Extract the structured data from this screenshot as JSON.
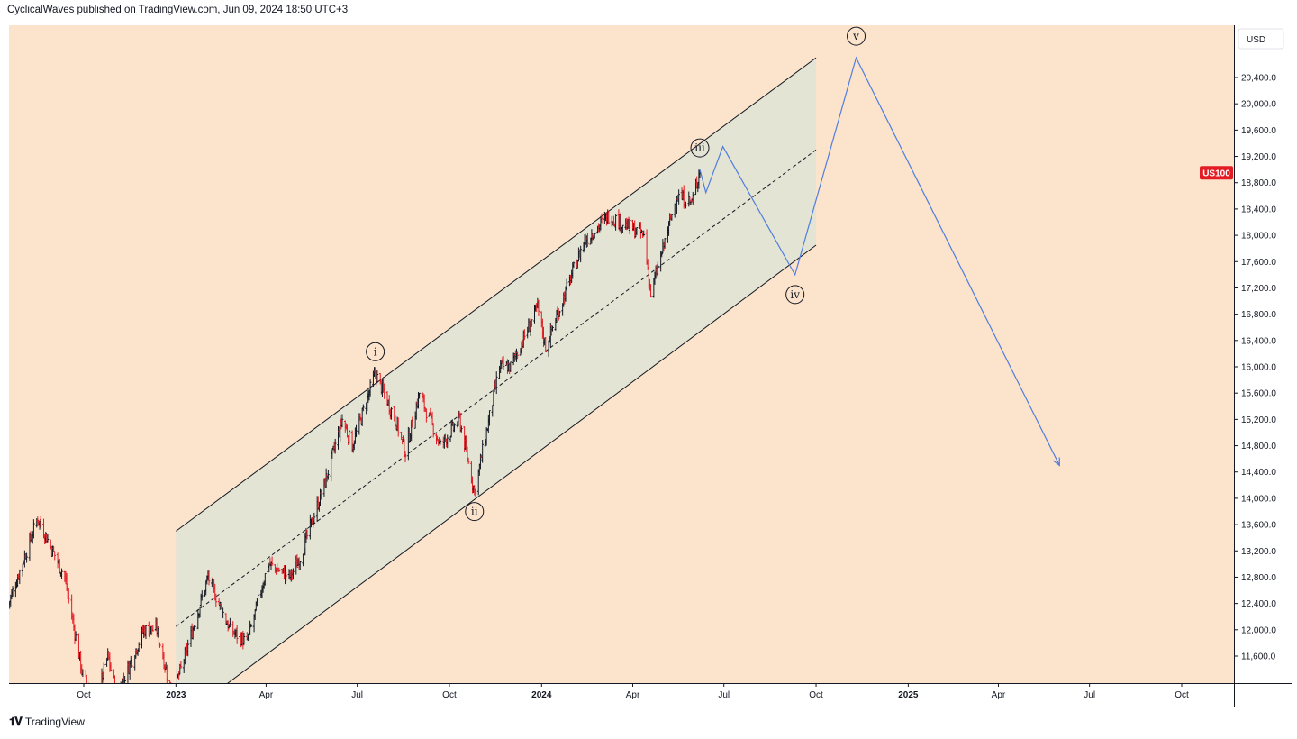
{
  "header": {
    "publisher": "CyclicalWaves published on TradingView.com, Jun 09, 2024 18:50 UTC+3"
  },
  "footer": {
    "brand": "TradingView"
  },
  "colors": {
    "background": "#fce4cc",
    "channel_fill": "#e3e4d4",
    "up_candle": "#131722",
    "down_candle": "#e31b23",
    "projection": "#4f7de0",
    "badge": "#e31b23"
  },
  "chart_data": {
    "type": "candlestick",
    "symbol_badge": "US100",
    "currency": "USD",
    "y_ticks": [
      "20,400.0",
      "20,000.0",
      "19,600.0",
      "19,200.0",
      "18,800.0",
      "18,400.0",
      "18,000.0",
      "17,600.0",
      "17,200.0",
      "16,800.0",
      "16,400.0",
      "16,000.0",
      "15,600.0",
      "15,200.0",
      "14,800.0",
      "14,400.0",
      "14,000.0",
      "13,600.0",
      "13,200.0",
      "12,800.0",
      "12,400.0",
      "12,000.0",
      "11,600.0"
    ],
    "ylim": [
      11100,
      20800
    ],
    "x_ticks": [
      {
        "label": "Oct",
        "date": "2022-10-01",
        "bold": false
      },
      {
        "label": "2023",
        "date": "2023-01-01",
        "bold": true
      },
      {
        "label": "Apr",
        "date": "2023-04-01",
        "bold": false
      },
      {
        "label": "Jul",
        "date": "2023-07-01",
        "bold": false
      },
      {
        "label": "Oct",
        "date": "2023-10-01",
        "bold": false
      },
      {
        "label": "2024",
        "date": "2024-01-01",
        "bold": true
      },
      {
        "label": "Apr",
        "date": "2024-04-01",
        "bold": false
      },
      {
        "label": "Jul",
        "date": "2024-07-01",
        "bold": false
      },
      {
        "label": "Oct",
        "date": "2024-10-01",
        "bold": false
      },
      {
        "label": "2025",
        "date": "2025-01-01",
        "bold": true
      },
      {
        "label": "Apr",
        "date": "2025-04-01",
        "bold": false
      },
      {
        "label": "Jul",
        "date": "2025-07-01",
        "bold": false
      },
      {
        "label": "Oct",
        "date": "2025-10-01",
        "bold": false
      }
    ],
    "price_path": [
      [
        "2022-07-18",
        12400
      ],
      [
        "2022-08-16",
        13700
      ],
      [
        "2022-09-12",
        12800
      ],
      [
        "2022-09-30",
        11300
      ],
      [
        "2022-10-13",
        10900
      ],
      [
        "2022-10-25",
        11600
      ],
      [
        "2022-11-03",
        11000
      ],
      [
        "2022-11-30",
        12000
      ],
      [
        "2022-12-13",
        12000
      ],
      [
        "2022-12-28",
        11000
      ],
      [
        "2023-01-06",
        11400
      ],
      [
        "2023-02-02",
        12800
      ],
      [
        "2023-02-24",
        12000
      ],
      [
        "2023-03-13",
        11800
      ],
      [
        "2023-04-03",
        13000
      ],
      [
        "2023-04-25",
        12800
      ],
      [
        "2023-05-05",
        13100
      ],
      [
        "2023-05-31",
        14300
      ],
      [
        "2023-06-16",
        15200
      ],
      [
        "2023-06-26",
        14800
      ],
      [
        "2023-07-19",
        15900
      ],
      [
        "2023-08-08",
        15200
      ],
      [
        "2023-08-18",
        14700
      ],
      [
        "2023-09-01",
        15600
      ],
      [
        "2023-09-22",
        14800
      ],
      [
        "2023-10-11",
        15200
      ],
      [
        "2023-10-26",
        14100
      ],
      [
        "2023-11-20",
        16000
      ],
      [
        "2023-12-01",
        16000
      ],
      [
        "2023-12-28",
        16900
      ],
      [
        "2024-01-05",
        16300
      ],
      [
        "2024-02-12",
        17900
      ],
      [
        "2024-03-08",
        18300
      ],
      [
        "2024-04-12",
        18000
      ],
      [
        "2024-04-19",
        17100
      ],
      [
        "2024-05-15",
        18600
      ],
      [
        "2024-05-30",
        18500
      ],
      [
        "2024-06-07",
        19000
      ]
    ],
    "projection": [
      [
        "2024-06-07",
        19000
      ],
      [
        "2024-06-13",
        18650
      ],
      [
        "2024-06-30",
        19350
      ],
      [
        "2024-09-10",
        17400
      ],
      [
        "2024-11-10",
        20700
      ],
      [
        "2025-06-01",
        14500
      ]
    ],
    "channel": {
      "start": "2023-01-01",
      "end": "2024-10-01",
      "upper": [
        13500,
        20700
      ],
      "middle": [
        12050,
        19300
      ],
      "lower": [
        10600,
        17850
      ]
    },
    "wave_labels": [
      {
        "label": "i",
        "date": "2023-07-19",
        "price": 15900,
        "position": "above"
      },
      {
        "label": "ii",
        "date": "2023-10-26",
        "price": 14100,
        "position": "below"
      },
      {
        "label": "iii",
        "date": "2024-06-07",
        "price": 19000,
        "position": "above"
      },
      {
        "label": "iv",
        "date": "2024-09-10",
        "price": 17400,
        "position": "below"
      },
      {
        "label": "v",
        "date": "2024-11-10",
        "price": 20700,
        "position": "above"
      }
    ]
  }
}
